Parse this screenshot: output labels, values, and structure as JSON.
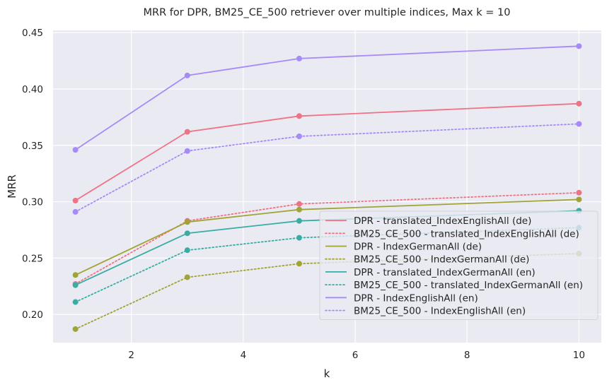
{
  "chart_data": {
    "type": "line",
    "title": "MRR for DPR, BM25_CE_500 retriever over multiple indices, Max k = 10",
    "xlabel": "k",
    "ylabel": "MRR",
    "xlim": [
      0.6,
      10.4
    ],
    "ylim": [
      0.175,
      0.452
    ],
    "xticks": [
      2,
      4,
      6,
      8,
      10
    ],
    "yticks": [
      0.2,
      0.25,
      0.3,
      0.35,
      0.4,
      0.45
    ],
    "xtick_labels": [
      "2",
      "4",
      "6",
      "8",
      "10"
    ],
    "ytick_labels": [
      "0.20",
      "0.25",
      "0.30",
      "0.35",
      "0.40",
      "0.45"
    ],
    "grid": true,
    "legend_position": "lower-right",
    "x": [
      1,
      3,
      5,
      10
    ],
    "series": [
      {
        "name": "DPR - translated_IndexEnglishAll (de)",
        "values": [
          0.301,
          0.362,
          0.376,
          0.387
        ],
        "color": "#f07284",
        "style": "solid"
      },
      {
        "name": "BM25_CE_500 - translated_IndexEnglishAll (de)",
        "values": [
          0.227,
          0.283,
          0.298,
          0.308
        ],
        "color": "#f07284",
        "style": "dotted"
      },
      {
        "name": "DPR - IndexGermanAll (de)",
        "values": [
          0.235,
          0.282,
          0.293,
          0.302
        ],
        "color": "#a0a434",
        "style": "solid"
      },
      {
        "name": "BM25_CE_500 - IndexGermanAll (de)",
        "values": [
          0.187,
          0.233,
          0.245,
          0.254
        ],
        "color": "#a0a434",
        "style": "dotted"
      },
      {
        "name": "DPR - translated_IndexGermanAll (en)",
        "values": [
          0.226,
          0.272,
          0.283,
          0.292
        ],
        "color": "#38ada4",
        "style": "solid"
      },
      {
        "name": "BM25_CE_500 - translated_IndexGermanAll (en)",
        "values": [
          0.211,
          0.257,
          0.268,
          0.277
        ],
        "color": "#38ada4",
        "style": "dotted"
      },
      {
        "name": "DPR - IndexEnglishAll (en)",
        "values": [
          0.346,
          0.412,
          0.427,
          0.438
        ],
        "color": "#a58af8",
        "style": "solid"
      },
      {
        "name": "BM25_CE_500 - IndexEnglishAll (en)",
        "values": [
          0.291,
          0.345,
          0.358,
          0.369
        ],
        "color": "#a58af8",
        "style": "dotted"
      }
    ]
  }
}
